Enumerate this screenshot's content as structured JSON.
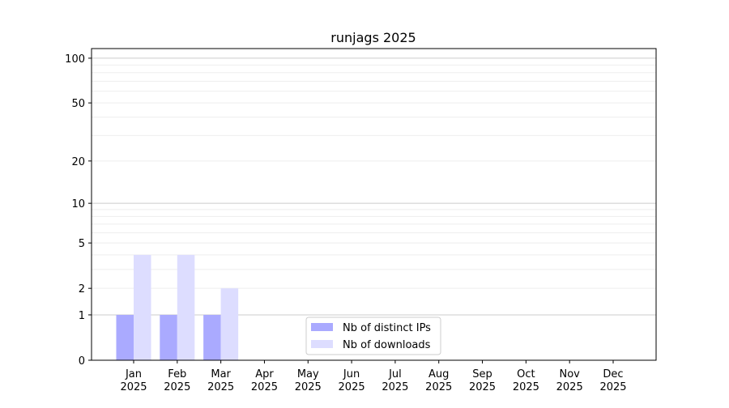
{
  "chart_data": {
    "type": "bar",
    "title": "runjags 2025",
    "xlabel": "",
    "ylabel": "",
    "yscale": "symlog",
    "ylim": [
      0,
      116
    ],
    "yticks": [
      0,
      1,
      2,
      5,
      10,
      20,
      50,
      100
    ],
    "grid": true,
    "legend_placement": "lower-center",
    "categories": [
      [
        "Jan",
        "2025"
      ],
      [
        "Feb",
        "2025"
      ],
      [
        "Mar",
        "2025"
      ],
      [
        "Apr",
        "2025"
      ],
      [
        "May",
        "2025"
      ],
      [
        "Jun",
        "2025"
      ],
      [
        "Jul",
        "2025"
      ],
      [
        "Aug",
        "2025"
      ],
      [
        "Sep",
        "2025"
      ],
      [
        "Oct",
        "2025"
      ],
      [
        "Nov",
        "2025"
      ],
      [
        "Dec",
        "2025"
      ]
    ],
    "series": [
      {
        "name": "Nb of distinct IPs",
        "color": "#aaaaff",
        "values": [
          1,
          1,
          1,
          0,
          0,
          0,
          0,
          0,
          0,
          0,
          0,
          0
        ]
      },
      {
        "name": "Nb of downloads",
        "color": "#ddddff",
        "values": [
          4,
          4,
          2,
          0,
          0,
          0,
          0,
          0,
          0,
          0,
          0,
          0
        ]
      }
    ]
  }
}
